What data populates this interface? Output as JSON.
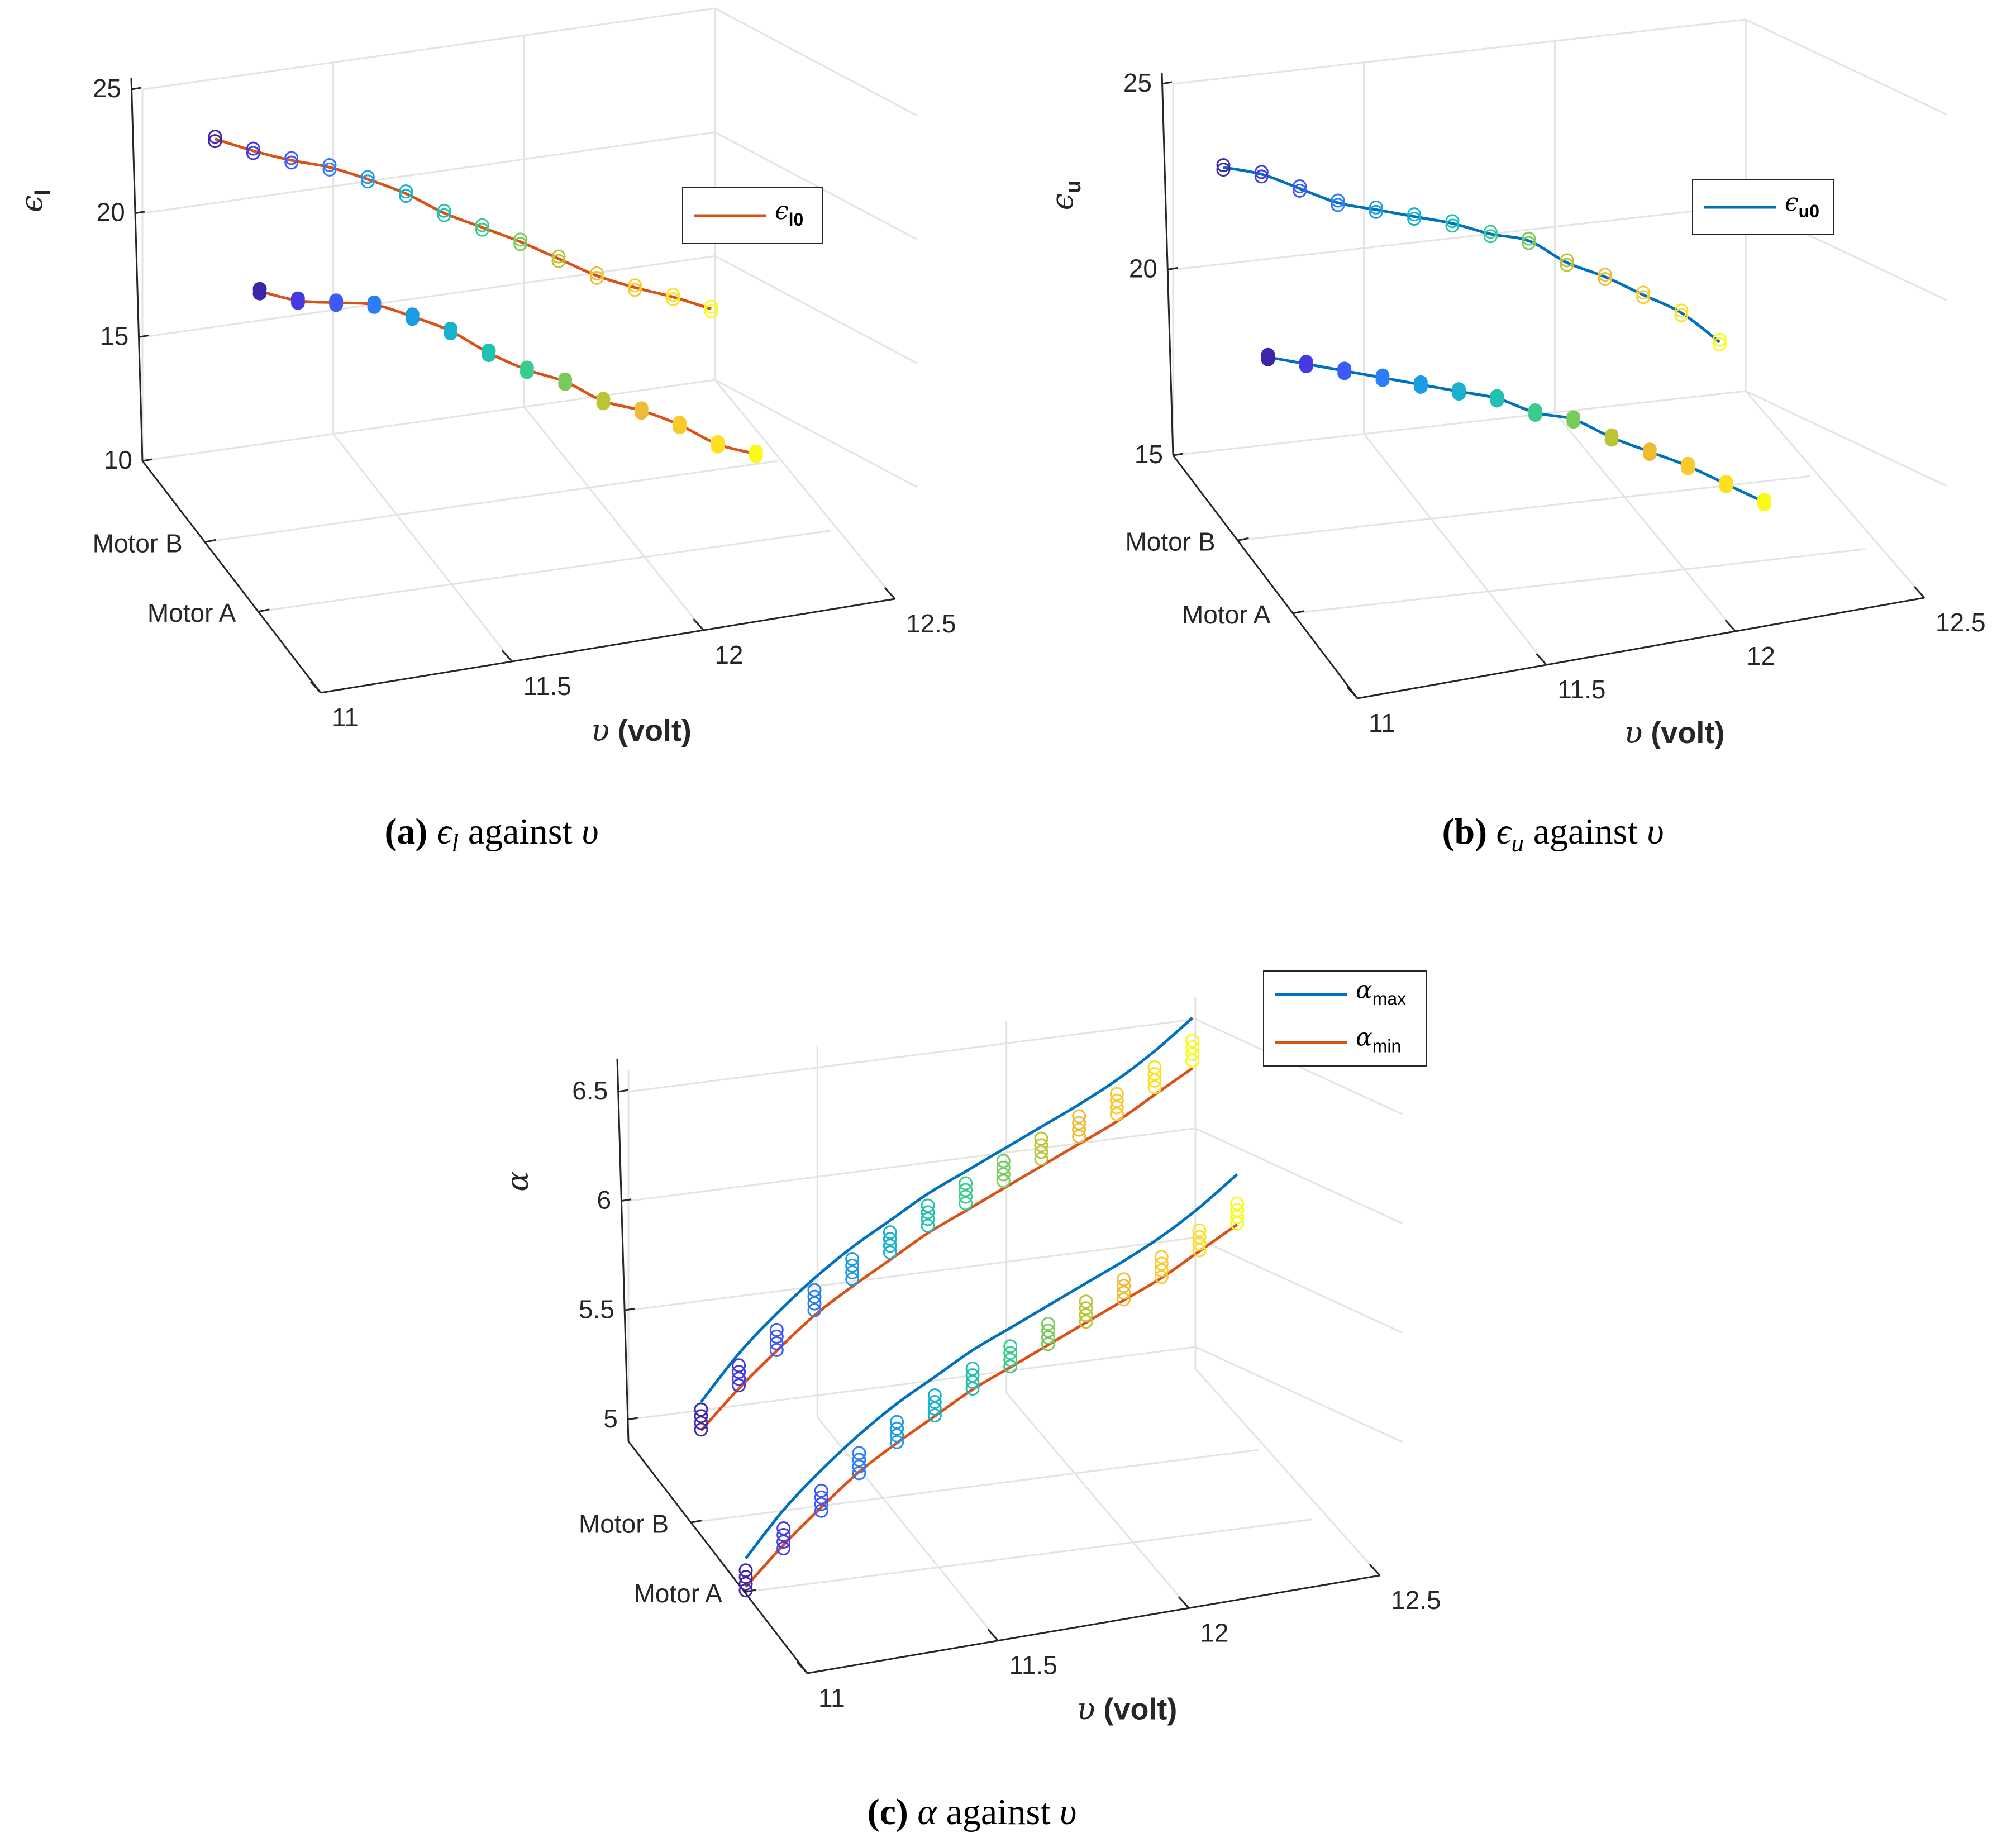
{
  "colors": {
    "blue": "#0072BD",
    "orange": "#D95319",
    "grid": "#e3e3e3",
    "axis": "#262626",
    "colormap_start": "#3e26a8",
    "colormap_end": "#f9fb15"
  },
  "captions": {
    "a": {
      "label": "(a)",
      "sym": "ϵ",
      "sub": "l",
      "text": " against ",
      "var": "υ"
    },
    "b": {
      "label": "(b)",
      "sym": "ϵ",
      "sub": "u",
      "text": " against ",
      "var": "υ"
    },
    "c": {
      "label": "(c)",
      "sym": "α",
      "text": " against ",
      "var": "υ"
    }
  },
  "chart_data": [
    {
      "id": "a",
      "type": "scatter3d",
      "title": "",
      "xlabel_symbol": "υ",
      "xlabel": "(volt)",
      "zlabel_symbol": "ϵ",
      "zlabel_sub": "l",
      "x_ticks": [
        "11",
        "11.5",
        "12",
        "12.5"
      ],
      "xlim": [
        11,
        12.5
      ],
      "y_ticks": [
        "Motor B",
        "Motor A"
      ],
      "z_ticks": [
        "25",
        "20",
        "15",
        "10"
      ],
      "zlim": [
        10,
        25
      ],
      "legend": [
        {
          "symbol": "ϵ",
          "sub": "l0",
          "color": "#D95319"
        }
      ],
      "series": [
        {
          "name": "Motor B",
          "x": [
            11.0,
            11.1,
            11.2,
            11.3,
            11.4,
            11.5,
            11.6,
            11.7,
            11.8,
            11.9,
            12.0,
            12.1,
            12.2,
            12.3
          ],
          "y": [
            23.0,
            22.3,
            21.7,
            21.2,
            20.5,
            19.7,
            18.7,
            17.9,
            17.1,
            16.2,
            15.3,
            14.6,
            14.0,
            13.3
          ],
          "markers": "open",
          "fit": "ϵ_l0"
        },
        {
          "name": "Motor A",
          "x": [
            11.0,
            11.1,
            11.2,
            11.3,
            11.4,
            11.5,
            11.6,
            11.7,
            11.8,
            11.9,
            12.0,
            12.1,
            12.2,
            12.3
          ],
          "y": [
            20.8,
            20.2,
            19.9,
            19.6,
            18.9,
            18.1,
            17.0,
            16.1,
            15.4,
            14.4,
            13.8,
            13.0,
            12.0,
            11.4
          ],
          "markers": "filled",
          "fit": "ϵ_l0"
        }
      ]
    },
    {
      "id": "b",
      "type": "scatter3d",
      "title": "",
      "xlabel_symbol": "υ",
      "xlabel": "(volt)",
      "zlabel_symbol": "ϵ",
      "zlabel_sub": "u",
      "x_ticks": [
        "11",
        "11.5",
        "12",
        "12.5"
      ],
      "xlim": [
        11,
        12.5
      ],
      "y_ticks": [
        "Motor B",
        "Motor A"
      ],
      "z_ticks": [
        "25",
        "20",
        "15"
      ],
      "zlim": [
        15,
        25
      ],
      "legend": [
        {
          "symbol": "ϵ",
          "sub": "u0",
          "color": "#0072BD"
        }
      ],
      "series": [
        {
          "name": "Motor B",
          "x": [
            11.0,
            11.1,
            11.2,
            11.3,
            11.4,
            11.5,
            11.6,
            11.7,
            11.8,
            11.9,
            12.0,
            12.1,
            12.2,
            12.3
          ],
          "y": [
            22.6,
            22.3,
            21.8,
            21.3,
            21.0,
            20.7,
            20.4,
            20.0,
            19.7,
            19.0,
            18.5,
            17.9,
            17.3,
            16.4
          ],
          "markers": "open",
          "fit": "ϵ_u0"
        },
        {
          "name": "Motor A",
          "x": [
            11.0,
            11.1,
            11.2,
            11.3,
            11.4,
            11.5,
            11.6,
            11.7,
            11.8,
            11.9,
            12.0,
            12.1,
            12.2,
            12.3
          ],
          "y": [
            20.5,
            20.2,
            19.9,
            19.6,
            19.3,
            19.0,
            18.7,
            18.2,
            17.9,
            17.3,
            16.8,
            16.3,
            15.7,
            15.1
          ],
          "markers": "filled",
          "fit": "ϵ_u0"
        }
      ]
    },
    {
      "id": "c",
      "type": "scatter3d",
      "title": "",
      "xlabel_symbol": "υ",
      "xlabel": "(volt)",
      "zlabel_symbol": "α",
      "zlabel_sub": "",
      "x_ticks": [
        "11",
        "11.5",
        "12",
        "12.5"
      ],
      "xlim": [
        11,
        12.5
      ],
      "y_ticks": [
        "Motor B",
        "Motor A"
      ],
      "z_ticks": [
        "6.5",
        "6",
        "5.5",
        "5"
      ],
      "zlim": [
        4.9,
        6.6
      ],
      "legend": [
        {
          "symbol": "α",
          "sub": "max",
          "color": "#0072BD"
        },
        {
          "symbol": "α",
          "sub": "min",
          "color": "#D95319"
        }
      ],
      "series": [
        {
          "name": "Motor B",
          "x": [
            11.0,
            11.1,
            11.2,
            11.3,
            11.4,
            11.5,
            11.6,
            11.7,
            11.8,
            11.9,
            12.0,
            12.1,
            12.2,
            12.3
          ],
          "y": [
            5.0,
            5.18,
            5.32,
            5.48,
            5.6,
            5.7,
            5.8,
            5.88,
            5.96,
            6.04,
            6.12,
            6.2,
            6.3,
            6.4
          ],
          "y_max": [
            5.08,
            5.28,
            5.44,
            5.58,
            5.7,
            5.8,
            5.9,
            5.98,
            6.06,
            6.14,
            6.22,
            6.31,
            6.42,
            6.55
          ],
          "y_min": [
            4.95,
            5.12,
            5.27,
            5.41,
            5.52,
            5.62,
            5.72,
            5.8,
            5.88,
            5.96,
            6.04,
            6.12,
            6.22,
            6.32
          ],
          "markers": "open"
        },
        {
          "name": "Motor A",
          "x": [
            11.0,
            11.1,
            11.2,
            11.3,
            11.4,
            11.5,
            11.6,
            11.7,
            11.8,
            11.9,
            12.0,
            12.1,
            12.2,
            12.3
          ],
          "y": [
            4.98,
            5.15,
            5.3,
            5.45,
            5.57,
            5.67,
            5.77,
            5.85,
            5.93,
            6.01,
            6.09,
            6.17,
            6.27,
            6.37
          ],
          "y_max": [
            5.08,
            5.28,
            5.44,
            5.58,
            5.7,
            5.8,
            5.9,
            5.98,
            6.06,
            6.14,
            6.22,
            6.31,
            6.42,
            6.55
          ],
          "y_min": [
            4.95,
            5.12,
            5.27,
            5.41,
            5.52,
            5.62,
            5.72,
            5.8,
            5.88,
            5.96,
            6.04,
            6.12,
            6.22,
            6.32
          ],
          "markers": "open"
        }
      ]
    }
  ]
}
